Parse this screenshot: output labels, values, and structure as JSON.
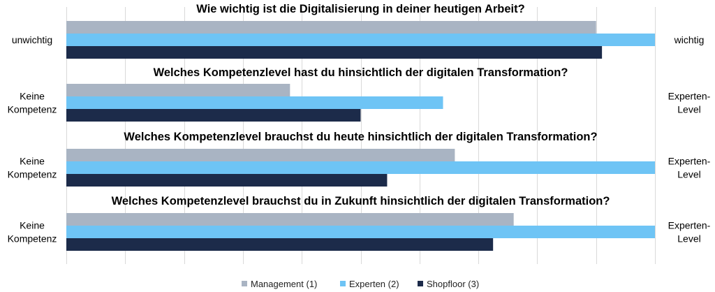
{
  "chart_data": {
    "type": "bar",
    "orientation": "horizontal",
    "grid": true,
    "legend_position": "bottom",
    "xlim": [
      0,
      10
    ],
    "legend": [
      {
        "name": "Management (1)",
        "color": "#a9b4c3"
      },
      {
        "name": "Experten (2)",
        "color": "#6ec4f5"
      },
      {
        "name": "Shopfloor (3)",
        "color": "#1c2b4a"
      }
    ],
    "questions": [
      {
        "title": "Wie wichtig ist die Digitalisierung in deiner heutigen Arbeit?",
        "left_label": [
          "unwichtig"
        ],
        "right_label": [
          "wichtig"
        ],
        "values": [
          9.0,
          10.0,
          9.1
        ]
      },
      {
        "title": "Welches Kompetenzlevel hast du hinsichtlich der digitalen Transformation?",
        "left_label": [
          "Keine",
          "Kompetenz"
        ],
        "right_label": [
          "Experten-",
          "Level"
        ],
        "values": [
          3.8,
          6.4,
          5.0
        ]
      },
      {
        "title": "Welches Kompetenzlevel brauchst du heute hinsichtlich der digitalen Transformation?",
        "left_label": [
          "Keine",
          "Kompetenz"
        ],
        "right_label": [
          "Experten-",
          "Level"
        ],
        "values": [
          6.6,
          10.0,
          5.45
        ]
      },
      {
        "title": "Welches Kompetenzlevel brauchst du in Zukunft hinsichtlich der digitalen Transformation?",
        "left_label": [
          "Keine",
          "Kompetenz"
        ],
        "right_label": [
          "Experten-",
          "Level"
        ],
        "values": [
          7.6,
          10.0,
          7.25
        ]
      }
    ]
  }
}
